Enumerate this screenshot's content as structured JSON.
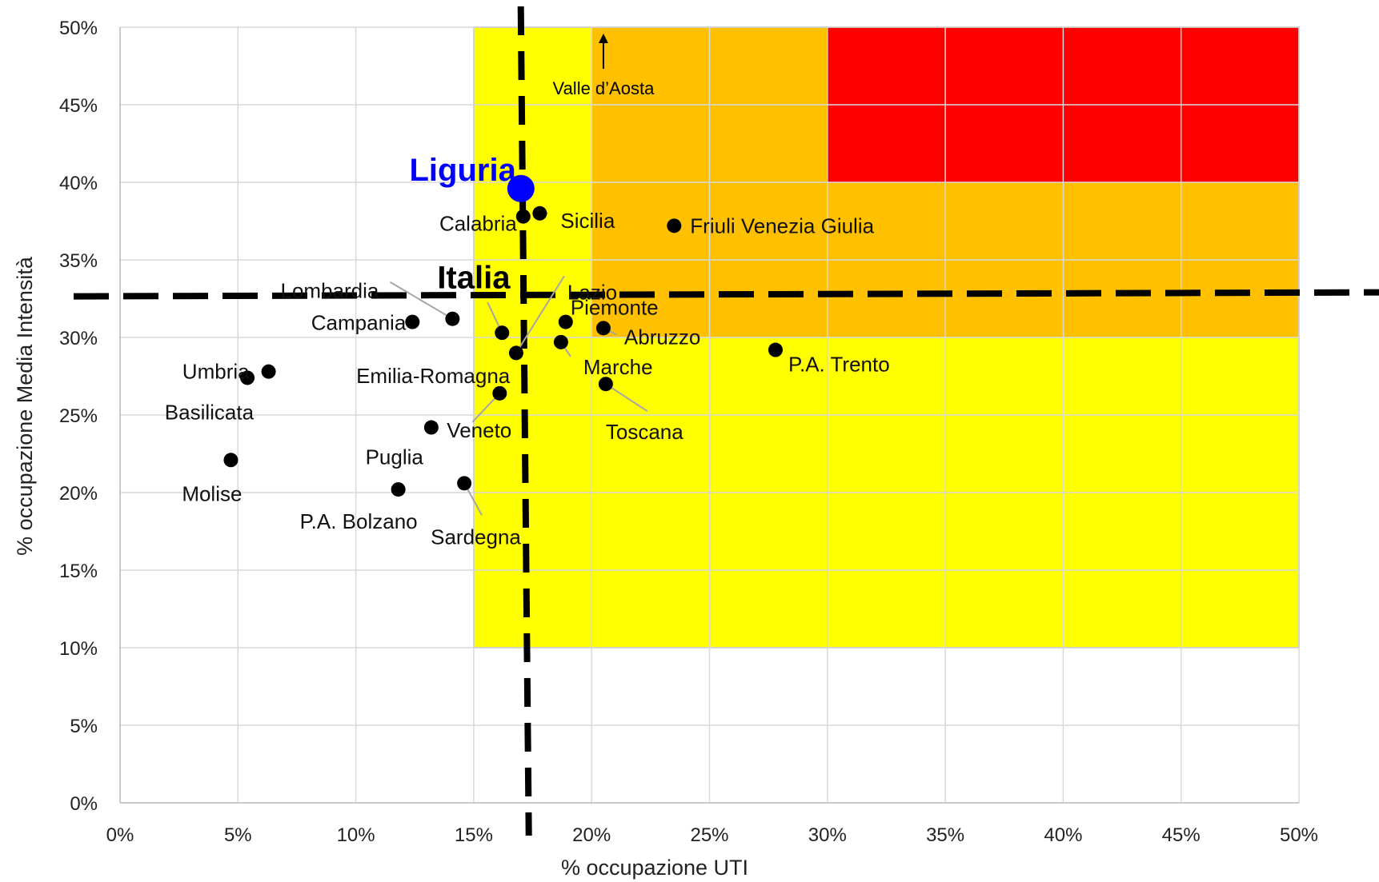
{
  "chart_data": {
    "type": "scatter",
    "xlabel": "% occupazione UTI",
    "ylabel": "% occupazione Media Intensità",
    "xlim": [
      0,
      50
    ],
    "ylim": [
      0,
      50
    ],
    "x_ticks": [
      "0%",
      "5%",
      "10%",
      "15%",
      "20%",
      "25%",
      "30%",
      "35%",
      "40%",
      "45%",
      "50%"
    ],
    "y_ticks": [
      "0%",
      "5%",
      "10%",
      "15%",
      "20%",
      "25%",
      "30%",
      "35%",
      "40%",
      "45%",
      "50%"
    ],
    "grid": true,
    "colors": {
      "yellow": "#ffff00",
      "orange": "#ffc000",
      "red": "#ff0000",
      "points": "#000000",
      "highlight": "#0000ff",
      "grid": "#d9d9d9",
      "leader": "#a6a6a6"
    },
    "zones": [
      {
        "color": "yellow",
        "x": [
          15,
          50
        ],
        "y": [
          10,
          30
        ]
      },
      {
        "color": "yellow",
        "x": [
          15,
          20
        ],
        "y": [
          30,
          50
        ]
      },
      {
        "color": "orange",
        "x": [
          20,
          50
        ],
        "y": [
          30,
          40
        ]
      },
      {
        "color": "orange",
        "x": [
          20,
          30
        ],
        "y": [
          40,
          50
        ]
      },
      {
        "color": "red",
        "x": [
          30,
          50
        ],
        "y": [
          40,
          50
        ]
      }
    ],
    "reference_lines": {
      "italia_x": 17.2,
      "italia_y": 32.7,
      "italia_label": "Italia"
    },
    "highlight": {
      "name": "Liguria",
      "x": 17.0,
      "y": 39.6
    },
    "points": [
      {
        "name": "Calabria",
        "x": 17.1,
        "y": 37.8
      },
      {
        "name": "Sicilia",
        "x": 17.8,
        "y": 38.0
      },
      {
        "name": "Friuli Venezia Giulia",
        "x": 23.5,
        "y": 37.2
      },
      {
        "name": "Lazio",
        "x": 16.8,
        "y": 29.0
      },
      {
        "name": "Piemonte",
        "x": 18.9,
        "y": 31.0
      },
      {
        "name": "Lombardia",
        "x": 14.1,
        "y": 31.2
      },
      {
        "name": "Campania",
        "x": 12.4,
        "y": 31.0
      },
      {
        "name": "Abruzzo",
        "x": 20.5,
        "y": 30.6
      },
      {
        "name": "Emilia-Romagna",
        "x": 16.2,
        "y": 30.3
      },
      {
        "name": "Marche",
        "x": 18.7,
        "y": 29.7
      },
      {
        "name": "P.A. Trento",
        "x": 27.8,
        "y": 29.2
      },
      {
        "name": "Umbria",
        "x": 6.3,
        "y": 27.8
      },
      {
        "name": "Basilicata",
        "x": 5.4,
        "y": 27.4
      },
      {
        "name": "Toscana",
        "x": 20.6,
        "y": 27.0
      },
      {
        "name": "Veneto",
        "x": 16.1,
        "y": 26.4
      },
      {
        "name": "Puglia",
        "x": 13.2,
        "y": 24.2
      },
      {
        "name": "Molise",
        "x": 4.7,
        "y": 22.1
      },
      {
        "name": "Sardegna",
        "x": 14.6,
        "y": 20.6
      },
      {
        "name": "P.A. Bolzano",
        "x": 11.8,
        "y": 20.2
      }
    ],
    "offchart_annotation": {
      "name": "Valle d’Aosta",
      "x": 20.5,
      "direction": "up"
    }
  }
}
